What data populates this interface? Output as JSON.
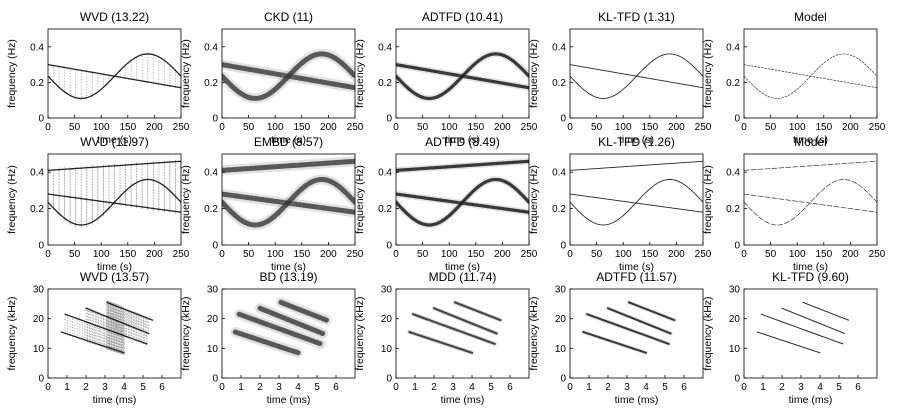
{
  "chart_data": {
    "type": "heatmap",
    "rows": [
      {
        "xlabel": "time (s)",
        "ylabel": "frequency (Hz)",
        "xlim": [
          0,
          250
        ],
        "ylim": [
          0,
          0.5
        ],
        "xticks": [
          0,
          50,
          100,
          150,
          200,
          250
        ],
        "xtick_labels": [
          "0",
          "50",
          "100",
          "150",
          "200",
          "250"
        ],
        "yticks": [
          0,
          0.2,
          0.4
        ],
        "ytick_labels": [
          "0",
          "0.2",
          "0.4"
        ],
        "components": [
          {
            "name": "descending chirp",
            "kind": "linear",
            "f_start": 0.3,
            "f_end": 0.17
          },
          {
            "name": "sinusoidal FM",
            "kind": "sinusoid",
            "center": 0.235,
            "amplitude": 0.125,
            "period": 250,
            "phase_deg": 180
          }
        ],
        "panels": [
          {
            "title": "WVD (13.22)",
            "method": "WVD",
            "score": 13.22
          },
          {
            "title": "CKD (11)",
            "method": "CKD",
            "score": 11
          },
          {
            "title": "ADTFD (10.41)",
            "method": "ADTFD",
            "score": 10.41
          },
          {
            "title": "KL-TFD (1.31)",
            "method": "KL-TFD",
            "score": 1.31
          },
          {
            "title": "Model",
            "method": "Model",
            "score": null
          }
        ]
      },
      {
        "xlabel": "time (s)",
        "ylabel": "frequency (Hz)",
        "xlim": [
          0,
          250
        ],
        "ylim": [
          0,
          0.5
        ],
        "xticks": [
          0,
          50,
          100,
          150,
          200,
          250
        ],
        "xtick_labels": [
          "0",
          "50",
          "100",
          "150",
          "200",
          "250"
        ],
        "yticks": [
          0,
          0.2,
          0.4
        ],
        "ytick_labels": [
          "0",
          "0.2",
          "0.4"
        ],
        "components": [
          {
            "name": "ascending chirp",
            "kind": "linear",
            "f_start": 0.41,
            "f_end": 0.46
          },
          {
            "name": "descending chirp",
            "kind": "linear",
            "f_start": 0.28,
            "f_end": 0.18
          },
          {
            "name": "sinusoidal FM",
            "kind": "sinusoid",
            "center": 0.235,
            "amplitude": 0.125,
            "period": 250,
            "phase_deg": 180
          }
        ],
        "panels": [
          {
            "title": "WVD (11.97)",
            "method": "WVD",
            "score": 11.97
          },
          {
            "title": "EMBD (8.57)",
            "method": "EMBD",
            "score": 8.57
          },
          {
            "title": "ADTFD (8.49)",
            "method": "ADTFD",
            "score": 8.49
          },
          {
            "title": "KL-TFD (1.26)",
            "method": "KL-TFD",
            "score": 1.26
          },
          {
            "title": "Model",
            "method": "Model",
            "score": null
          }
        ]
      },
      {
        "xlabel": "time (ms)",
        "ylabel": "frequency (kHz)",
        "xlim": [
          0,
          7
        ],
        "ylim": [
          0,
          30
        ],
        "xticks": [
          0,
          1,
          2,
          3,
          4,
          5,
          6
        ],
        "xtick_labels": [
          "0",
          "1",
          "2",
          "3",
          "4",
          "5",
          "6"
        ],
        "yticks": [
          0,
          10,
          20,
          30
        ],
        "ytick_labels": [
          "0",
          "10",
          "20",
          "30"
        ],
        "components": [
          {
            "name": "harmonic 1",
            "kind": "linear",
            "t_start": 0.7,
            "t_end": 4.0,
            "f_start": 15.5,
            "f_end": 8.5
          },
          {
            "name": "harmonic 2",
            "kind": "linear",
            "t_start": 0.9,
            "t_end": 5.2,
            "f_start": 21.5,
            "f_end": 11.5
          },
          {
            "name": "harmonic 3",
            "kind": "linear",
            "t_start": 2.0,
            "t_end": 5.3,
            "f_start": 23.5,
            "f_end": 15.0
          },
          {
            "name": "harmonic 4",
            "kind": "linear",
            "t_start": 3.1,
            "t_end": 5.5,
            "f_start": 25.5,
            "f_end": 19.5
          }
        ],
        "panels": [
          {
            "title": "WVD (13.57)",
            "method": "WVD",
            "score": 13.57
          },
          {
            "title": "BD (13.19)",
            "method": "BD",
            "score": 13.19
          },
          {
            "title": "MDD (11.74)",
            "method": "MDD",
            "score": 11.74
          },
          {
            "title": "ADTFD (11.57)",
            "method": "ADTFD",
            "score": 11.57
          },
          {
            "title": "KL-TFD (9.60)",
            "method": "KL-TFD",
            "score": 9.6
          }
        ]
      }
    ]
  }
}
